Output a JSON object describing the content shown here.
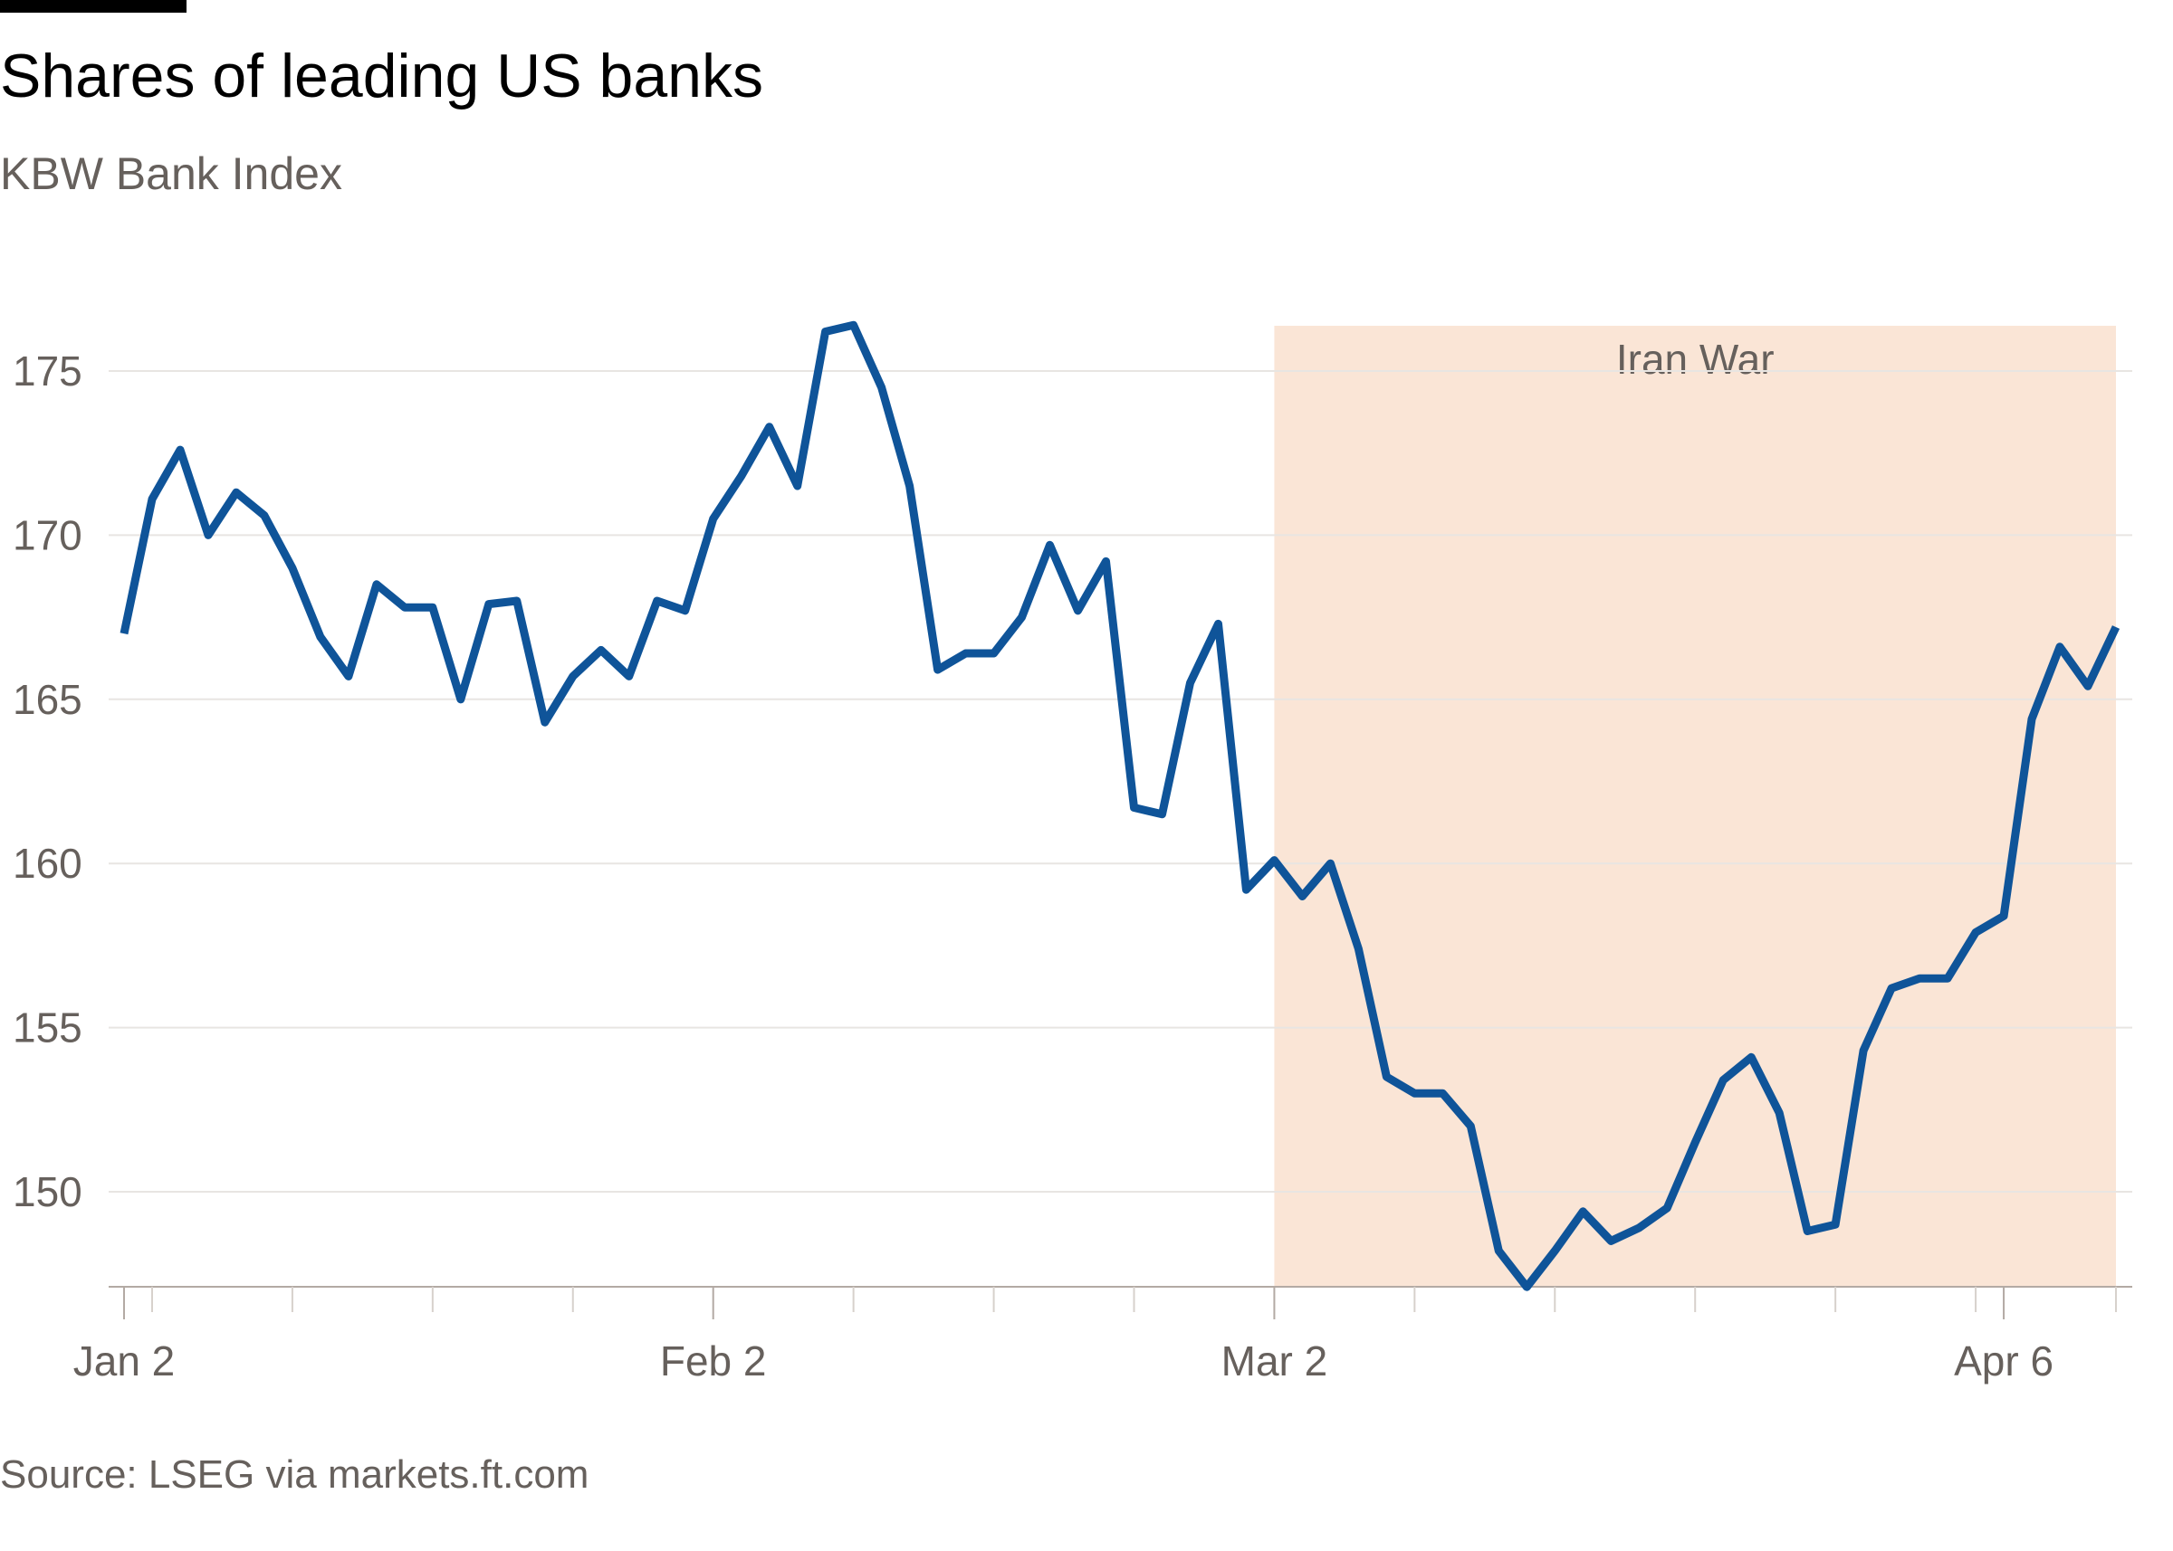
{
  "header": {
    "title": "Shares of leading US banks",
    "subtitle": "KBW Bank Index"
  },
  "footer": {
    "source": "Source: LSEG via markets.ft.com"
  },
  "colors": {
    "line": "#0f5499",
    "shade": "#fae5d6",
    "grid": "#e8e5e2",
    "axis_text": "#66605c"
  },
  "chart_data": {
    "type": "line",
    "title": "Shares of leading US banks",
    "subtitle": "KBW Bank Index",
    "xlabel": "",
    "ylabel": "",
    "ylim": [
      147,
      176.5
    ],
    "grid": true,
    "y_ticks": [
      150,
      155,
      160,
      165,
      170,
      175
    ],
    "x_ticks": [
      {
        "label": "Jan 2",
        "index": 0
      },
      {
        "label": "Feb 2",
        "index": 21
      },
      {
        "label": "Mar 2",
        "index": 41
      },
      {
        "label": "Apr 6",
        "index": 67
      }
    ],
    "minor_tick_indices": [
      1,
      6,
      11,
      16,
      21,
      26,
      31,
      36,
      41,
      46,
      51,
      56,
      61,
      66,
      71
    ],
    "n_points": 72,
    "shaded_region": {
      "label": "Iran War",
      "start_index": 41,
      "end_index": 71
    },
    "series": [
      {
        "name": "KBW Bank Index",
        "values": [
          167.0,
          171.1,
          172.6,
          170.0,
          171.3,
          170.6,
          169.0,
          166.9,
          165.7,
          168.5,
          167.8,
          167.8,
          165.0,
          167.9,
          168.0,
          164.3,
          165.7,
          166.5,
          165.7,
          168.0,
          167.7,
          170.5,
          171.8,
          173.3,
          171.5,
          176.2,
          176.4,
          174.5,
          171.5,
          165.9,
          166.4,
          166.4,
          167.5,
          169.7,
          167.7,
          169.2,
          161.7,
          161.5,
          165.5,
          167.3,
          159.2,
          160.1,
          159.0,
          160.0,
          157.4,
          153.5,
          153.0,
          153.0,
          152.0,
          148.2,
          147.1,
          148.2,
          149.4,
          148.5,
          148.9,
          149.5,
          151.5,
          153.4,
          154.1,
          152.4,
          148.8,
          149.0,
          154.3,
          156.2,
          156.5,
          156.5,
          157.9,
          158.4,
          164.4,
          166.6,
          165.4,
          167.2
        ]
      }
    ]
  }
}
